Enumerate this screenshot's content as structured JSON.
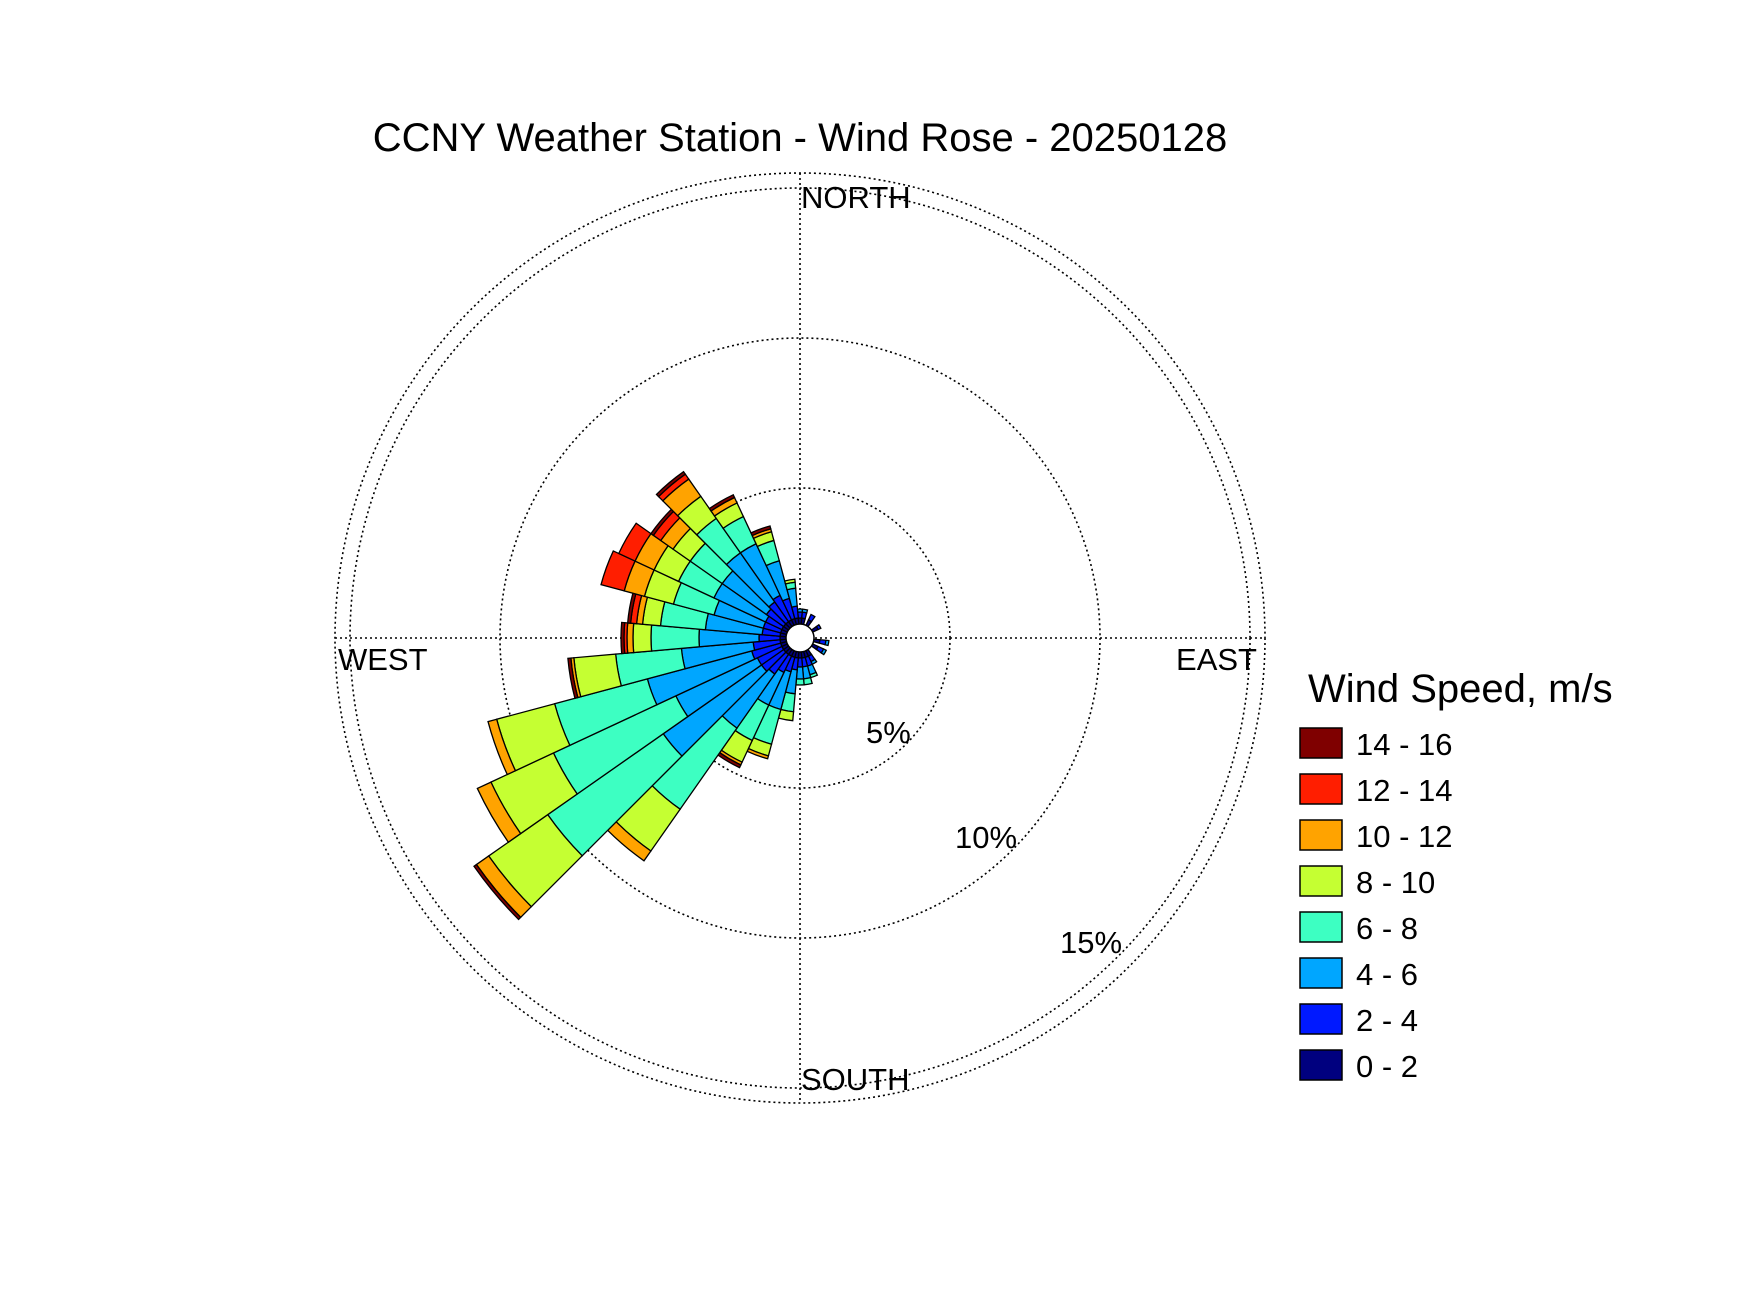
{
  "chart_data": {
    "type": "wind_rose",
    "title": "CCNY Weather Station - Wind Rose - 20250128",
    "direction_labels": {
      "north": "NORTH",
      "east": "EAST",
      "south": "SOUTH",
      "west": "WEST"
    },
    "radial_unit": "percent frequency",
    "rings": [
      {
        "value": 5,
        "label": "5%"
      },
      {
        "value": 10,
        "label": "10%"
      },
      {
        "value": 15,
        "label": "15%"
      }
    ],
    "radial_max": 15.5,
    "grid": true,
    "legend_position": "right",
    "legend_title": "Wind Speed, m/s",
    "speed_bins": [
      {
        "label": "0 - 2",
        "color": "#00007f"
      },
      {
        "label": "2 - 4",
        "color": "#0019ff"
      },
      {
        "label": "4 - 6",
        "color": "#00a6ff"
      },
      {
        "label": "6 - 8",
        "color": "#3dffc2"
      },
      {
        "label": "8 - 10",
        "color": "#c5ff32"
      },
      {
        "label": "10 - 12",
        "color": "#ffa300"
      },
      {
        "label": "12 - 14",
        "color": "#ff1e00"
      },
      {
        "label": "14 - 16",
        "color": "#7f0000"
      }
    ],
    "sector_width_deg": 10,
    "directions_note": "compass degrees the wind blows from; stacked cumulative % per speed bin, innermost = 0-2",
    "sectors": [
      {
        "dir": 0,
        "values": [
          0.2,
          0.2,
          0.1,
          0,
          0,
          0,
          0,
          0
        ]
      },
      {
        "dir": 10,
        "values": [
          0.2,
          0.2,
          0.1,
          0,
          0,
          0,
          0,
          0
        ]
      },
      {
        "dir": 30,
        "values": [
          0.2,
          0.2,
          0.0,
          0,
          0,
          0,
          0,
          0
        ]
      },
      {
        "dir": 60,
        "values": [
          0.2,
          0.1,
          0,
          0,
          0,
          0,
          0,
          0
        ]
      },
      {
        "dir": 100,
        "values": [
          0.2,
          0.2,
          0.1,
          0,
          0,
          0,
          0,
          0
        ]
      },
      {
        "dir": 120,
        "values": [
          0.2,
          0.2,
          0.1,
          0,
          0,
          0,
          0,
          0
        ]
      },
      {
        "dir": 150,
        "values": [
          0.2,
          0.2,
          0.1,
          0,
          0,
          0,
          0,
          0
        ]
      },
      {
        "dir": 160,
        "values": [
          0.2,
          0.3,
          0.3,
          0.1,
          0,
          0,
          0,
          0
        ]
      },
      {
        "dir": 170,
        "values": [
          0.2,
          0.3,
          0.4,
          0.2,
          0,
          0,
          0,
          0
        ]
      },
      {
        "dir": 180,
        "values": [
          0.2,
          0.3,
          0.4,
          0.2,
          0,
          0,
          0,
          0
        ]
      },
      {
        "dir": 190,
        "values": [
          0.2,
          0.4,
          0.8,
          0.6,
          0.3,
          0,
          0,
          0
        ]
      },
      {
        "dir": 200,
        "values": [
          0.2,
          0.5,
          1.3,
          1.2,
          0.4,
          0.1,
          0,
          0
        ]
      },
      {
        "dir": 210,
        "values": [
          0.2,
          0.6,
          1.2,
          1.3,
          0.8,
          0.1,
          0,
          0.1
        ]
      },
      {
        "dir": 220,
        "values": [
          0.2,
          0.8,
          2.2,
          3.3,
          1.7,
          0.4,
          0,
          0
        ]
      },
      {
        "dir": 230,
        "values": [
          0.2,
          0.9,
          4.0,
          4.7,
          2.4,
          0.5,
          0,
          0.1
        ]
      },
      {
        "dir": 240,
        "values": [
          0.2,
          0.9,
          3.0,
          4.5,
          2.3,
          0.5,
          0,
          0
        ]
      },
      {
        "dir": 250,
        "values": [
          0.2,
          1.0,
          3.6,
          3.2,
          2.0,
          0.3,
          0,
          0
        ]
      },
      {
        "dir": 260,
        "values": [
          0.2,
          0.9,
          2.4,
          2.2,
          1.4,
          0.1,
          0,
          0.1
        ]
      },
      {
        "dir": 270,
        "values": [
          0.2,
          0.7,
          2.0,
          1.6,
          0.6,
          0.2,
          0.1,
          0.1
        ]
      },
      {
        "dir": 280,
        "values": [
          0.2,
          0.6,
          1.9,
          1.5,
          0.6,
          0.2,
          0.2,
          0.1
        ]
      },
      {
        "dir": 290,
        "values": [
          0.2,
          0.6,
          1.7,
          1.4,
          1.0,
          0.7,
          0.8,
          0
        ]
      },
      {
        "dir": 300,
        "values": [
          0.2,
          0.6,
          1.9,
          1.3,
          0.9,
          0.7,
          0.6,
          0
        ]
      },
      {
        "dir": 310,
        "values": [
          0.2,
          0.7,
          1.8,
          1.3,
          0.7,
          0.5,
          0.3,
          0.1
        ]
      },
      {
        "dir": 320,
        "values": [
          0.2,
          0.8,
          2.0,
          1.4,
          0.9,
          0.7,
          0.2,
          0.1
        ]
      },
      {
        "dir": 330,
        "values": [
          0.2,
          0.9,
          1.9,
          1.0,
          0.5,
          0.2,
          0,
          0.1
        ]
      },
      {
        "dir": 340,
        "values": [
          0.2,
          0.7,
          1.3,
          0.7,
          0.3,
          0.1,
          0,
          0.1
        ]
      },
      {
        "dir": 350,
        "values": [
          0.2,
          0.4,
          0.6,
          0.2,
          0.1,
          0,
          0,
          0
        ]
      }
    ]
  }
}
